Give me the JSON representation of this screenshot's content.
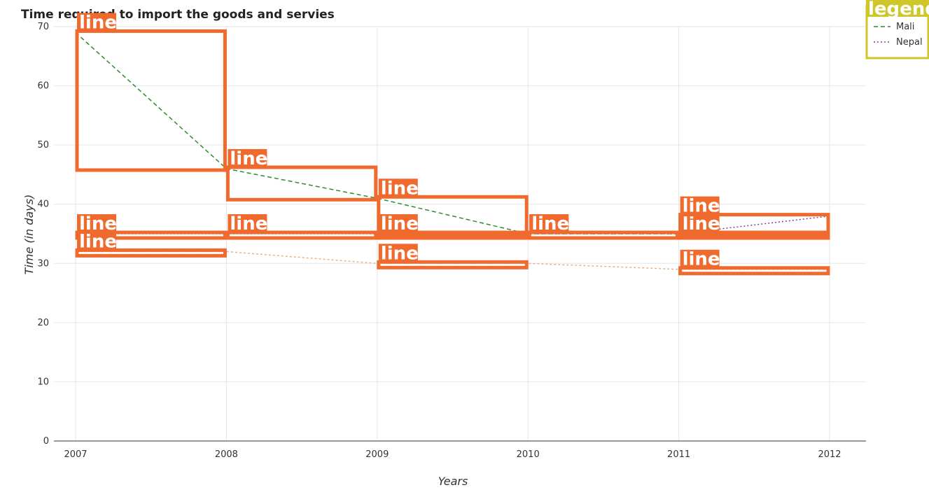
{
  "chart_data": {
    "type": "line",
    "title": "Time required to import the goods and servies",
    "xlabel": "Years",
    "ylabel": "Time (in days)",
    "categories": [
      "2007",
      "2008",
      "2009",
      "2010",
      "2011",
      "2012"
    ],
    "ylim": [
      0,
      70
    ],
    "yticks": [
      0,
      10,
      20,
      30,
      40,
      50,
      60,
      70
    ],
    "grid": true,
    "legend": {
      "title": "legend",
      "placement": "top-right"
    },
    "series": [
      {
        "name": "Mali",
        "values": [
          69,
          46,
          41,
          35,
          35,
          35
        ],
        "color": "#2e8b2e",
        "style": "dashed"
      },
      {
        "name": "Nepal",
        "values": [
          35,
          35,
          35,
          35,
          35,
          38
        ],
        "color": "#8b3a9b",
        "style": "dotted"
      }
    ],
    "faint_series_values": [
      32,
      32,
      30,
      30,
      29,
      29
    ],
    "faint_series_color": "#e3b48a",
    "annotation_label": "line",
    "annotation_color": "#f06a2e",
    "legend_color": "#cfc62a"
  }
}
